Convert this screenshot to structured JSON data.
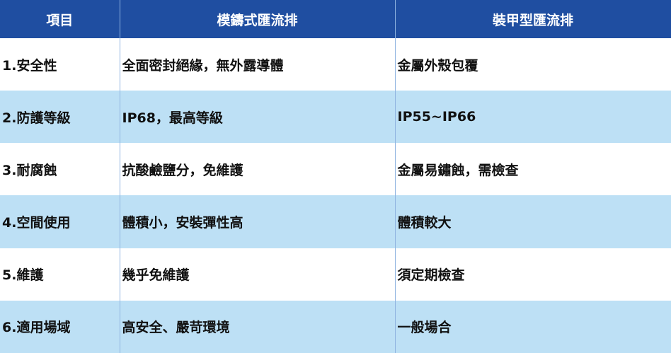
{
  "table": {
    "header": [
      "項目",
      "模鑄式匯流排",
      "裝甲型匯流排"
    ],
    "rows": [
      [
        "1.安全性",
        "全面密封絕緣，無外露導體",
        "金屬外殼包覆"
      ],
      [
        "2.防護等級",
        "IP68，最高等級",
        "IP55~IP66"
      ],
      [
        "3.耐腐蝕",
        "抗酸鹼鹽分，免維護",
        "金屬易鏽蝕，需檢查"
      ],
      [
        "4.空間使用",
        "體積小，安裝彈性高",
        "體積較大"
      ],
      [
        "5.維護",
        "幾乎免維護",
        "須定期檢查"
      ],
      [
        "6.適用場域",
        "高安全、嚴苛環境",
        "一般場合"
      ]
    ]
  }
}
